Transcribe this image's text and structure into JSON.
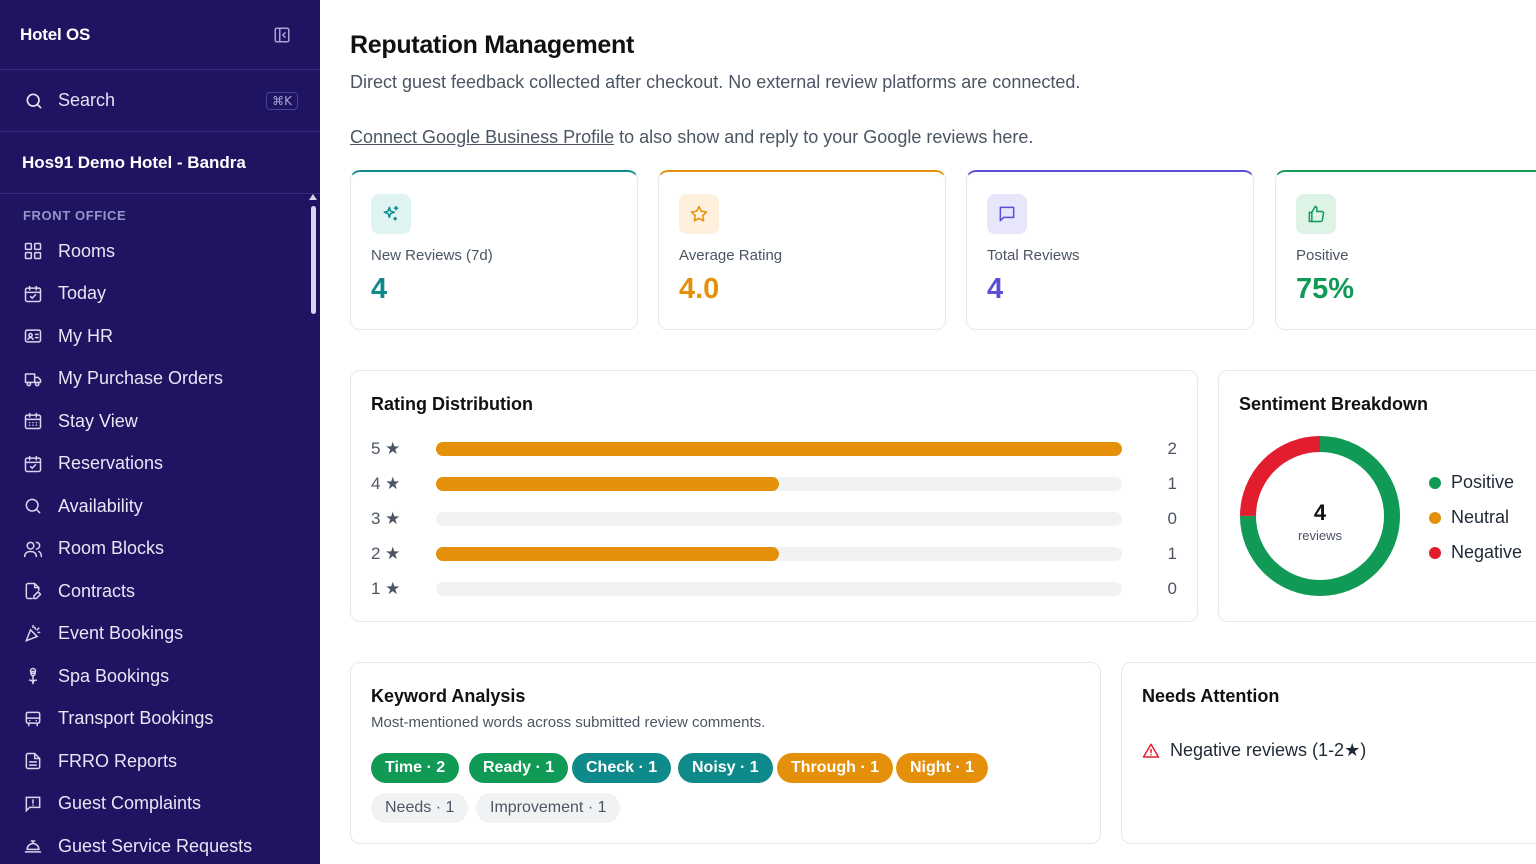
{
  "app": {
    "title": "Hotel OS"
  },
  "search": {
    "label": "Search",
    "shortcut": "⌘K"
  },
  "hotel": {
    "name": "Hos91 Demo Hotel - Bandra"
  },
  "sidebar": {
    "section_title": "FRONT OFFICE",
    "items": [
      {
        "label": "Rooms",
        "icon": "grid-icon"
      },
      {
        "label": "Today",
        "icon": "calendar-check-icon"
      },
      {
        "label": "My HR",
        "icon": "id-card-icon"
      },
      {
        "label": "My Purchase Orders",
        "icon": "truck-icon"
      },
      {
        "label": "Stay View",
        "icon": "calendar-grid-icon"
      },
      {
        "label": "Reservations",
        "icon": "calendar-check-icon"
      },
      {
        "label": "Availability",
        "icon": "search-icon"
      },
      {
        "label": "Room Blocks",
        "icon": "users-icon"
      },
      {
        "label": "Contracts",
        "icon": "file-edit-icon"
      },
      {
        "label": "Event Bookings",
        "icon": "party-popper-icon"
      },
      {
        "label": "Spa Bookings",
        "icon": "flower-icon"
      },
      {
        "label": "Transport Bookings",
        "icon": "bus-icon"
      },
      {
        "label": "FRRO Reports",
        "icon": "file-text-icon"
      },
      {
        "label": "Guest Complaints",
        "icon": "message-alert-icon"
      },
      {
        "label": "Guest Service Requests",
        "icon": "concierge-bell-icon"
      }
    ]
  },
  "page": {
    "title": "Reputation Management",
    "subtitle": "Direct guest feedback collected after checkout. No external review platforms are connected.",
    "connect_link": "Connect Google Business Profile",
    "connect_rest": " to also show and reply to your Google reviews here."
  },
  "stats": [
    {
      "label": "New Reviews (7d)",
      "value": "4",
      "icon": "sparkles-icon",
      "color": "#0e8a8a",
      "bg": "#dff3f3"
    },
    {
      "label": "Average Rating",
      "value": "4.0",
      "icon": "star-icon",
      "color": "#e5900a",
      "bg": "#fdf0dd"
    },
    {
      "label": "Total Reviews",
      "value": "4",
      "icon": "message-square-icon",
      "color": "#5b4fd6",
      "bg": "#e8e6fb"
    },
    {
      "label": "Positive",
      "value": "75%",
      "icon": "thumbs-up-icon",
      "color": "#119a55",
      "bg": "#dcf3e6"
    }
  ],
  "rating_distribution": {
    "title": "Rating Distribution",
    "rows": [
      {
        "label": "5 ★",
        "count": "2",
        "fraction": 1.0
      },
      {
        "label": "4 ★",
        "count": "1",
        "fraction": 0.5
      },
      {
        "label": "3 ★",
        "count": "0",
        "fraction": 0
      },
      {
        "label": "2 ★",
        "count": "1",
        "fraction": 0.5
      },
      {
        "label": "1 ★",
        "count": "0",
        "fraction": 0
      }
    ],
    "bar_color": "#e5900a"
  },
  "sentiment": {
    "title": "Sentiment Breakdown",
    "center_value": "4",
    "center_label": "reviews",
    "legend": [
      {
        "label": "Positive",
        "color": "#119a55"
      },
      {
        "label": "Neutral",
        "color": "#e5900a"
      },
      {
        "label": "Negative",
        "color": "#e11d2e"
      }
    ],
    "segments": [
      {
        "label": "Positive",
        "fraction": 0.75,
        "color": "#119a55"
      },
      {
        "label": "Negative",
        "fraction": 0.25,
        "color": "#e11d2e"
      }
    ]
  },
  "keywords": {
    "title": "Keyword Analysis",
    "subtitle": "Most-mentioned words across submitted review comments.",
    "chips": [
      {
        "label": "Time · 2",
        "tone": "green",
        "color": "#119a55"
      },
      {
        "label": "Ready · 1",
        "tone": "green",
        "color": "#119a55"
      },
      {
        "label": "Check · 1",
        "tone": "teal",
        "color": "#0e8a8a"
      },
      {
        "label": "Noisy · 1",
        "tone": "teal",
        "color": "#0e8a8a"
      },
      {
        "label": "Through · 1",
        "tone": "amber",
        "color": "#e5900a"
      },
      {
        "label": "Night · 1",
        "tone": "amber",
        "color": "#e5900a"
      },
      {
        "label": "Needs · 1",
        "tone": "gray",
        "color": "#f1f2f4"
      },
      {
        "label": "Improvement · 1",
        "tone": "gray",
        "color": "#f1f2f4"
      }
    ]
  },
  "attention": {
    "title": "Needs Attention",
    "item": "Negative reviews (1-2★)"
  }
}
